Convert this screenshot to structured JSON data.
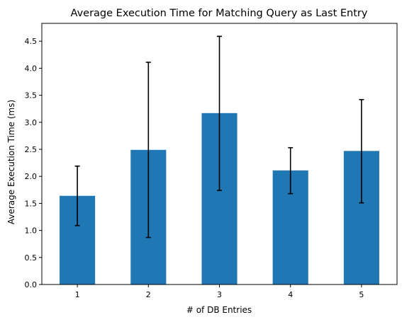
{
  "chart_data": {
    "type": "bar",
    "title": "Average Execution Time for Matching Query as Last Entry",
    "xlabel": "# of DB Entries",
    "ylabel": "Average Execution Time (ms)",
    "categories": [
      "1",
      "2",
      "3",
      "4",
      "5"
    ],
    "values": [
      1.64,
      2.49,
      3.17,
      2.11,
      2.47
    ],
    "error_low": [
      1.09,
      0.87,
      1.74,
      1.68,
      1.51
    ],
    "error_high": [
      2.19,
      4.11,
      4.59,
      2.53,
      3.42
    ],
    "ylim": [
      0,
      4.83
    ],
    "yticks": [
      "0.0",
      "0.5",
      "1.0",
      "1.5",
      "2.0",
      "2.5",
      "3.0",
      "3.5",
      "4.0",
      "4.5"
    ],
    "ytick_values": [
      0,
      0.5,
      1.0,
      1.5,
      2.0,
      2.5,
      3.0,
      3.5,
      4.0,
      4.5
    ],
    "grid": false,
    "legend": "none",
    "colors": {
      "bar": "#1f77b4",
      "error_bar": "#000000"
    }
  }
}
